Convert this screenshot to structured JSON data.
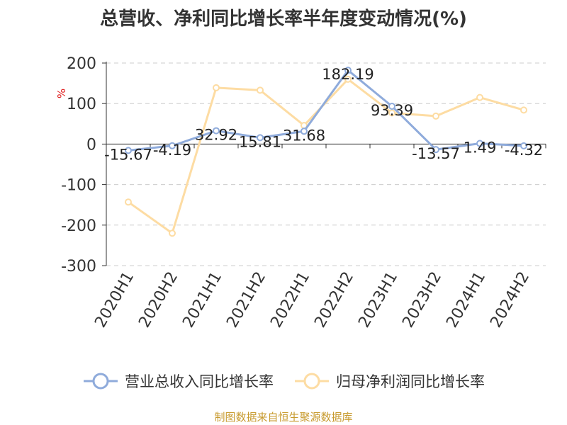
{
  "chart_data": {
    "type": "line",
    "title": "总营收、净利同比增长率半年度变动情况(%)",
    "ylabel": "%",
    "categories": [
      "2020H1",
      "2020H2",
      "2021H1",
      "2021H2",
      "2022H1",
      "2022H2",
      "2023H1",
      "2023H2",
      "2024H1",
      "2024H2"
    ],
    "ylim": [
      -300,
      200
    ],
    "yticks": [
      200,
      100,
      0,
      -100,
      -200,
      -300
    ],
    "grid": true,
    "legend_position": "bottom",
    "series": [
      {
        "name": "营业总收入同比增长率",
        "color": "#8fabdb",
        "values": [
          -15.67,
          -4.19,
          32.92,
          15.81,
          31.68,
          182.19,
          93.39,
          -13.57,
          1.49,
          -4.32
        ],
        "labels": [
          "-15.67",
          "-4.19",
          "32.92",
          "15.81",
          "31.68",
          "182.19",
          "93.39",
          "-13.57",
          "1.49",
          "-4.32"
        ]
      },
      {
        "name": "归母净利润同比增长率",
        "color": "#fddca3",
        "values": [
          -143,
          -220,
          139,
          133,
          46,
          160,
          77,
          69,
          115,
          84
        ]
      }
    ]
  },
  "source_note": "制图数据来自恒生聚源数据库"
}
